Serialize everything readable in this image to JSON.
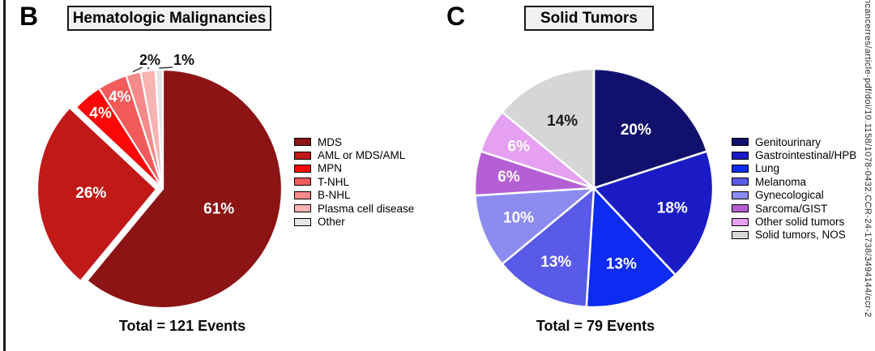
{
  "figure": {
    "watermark_text": "ncancerres/article-pdf/doi/10.1158/1078-0432.CCR-24-1738/3494144/ccr-2"
  },
  "chart_data": [
    {
      "type": "pie",
      "panel_letter": "B",
      "title": "Hematologic Malignancies",
      "total_events": 121,
      "total_label": "Total = 121 Events",
      "start_angle_deg": 0,
      "direction": "clockwise",
      "legend_position": "right",
      "slices": [
        {
          "name": "MDS",
          "pct": 61,
          "label": "61%",
          "color": "#8D1414",
          "label_color": "#ffffff",
          "label_r": 0.5,
          "label_pos": "inside"
        },
        {
          "name": "AML or MDS/AML",
          "pct": 26,
          "label": "26%",
          "color": "#C11818",
          "label_color": "#ffffff",
          "label_r": 0.55,
          "label_pos": "inside",
          "explode": 8
        },
        {
          "name": "MPN",
          "pct": 4,
          "label": "4%",
          "color": "#F90808",
          "label_color": "#ffffff",
          "label_r": 0.82,
          "label_pos": "inside"
        },
        {
          "name": "T-NHL",
          "pct": 4,
          "label": "4%",
          "color": "#F15B5B",
          "label_color": "#ffffff",
          "label_r": 0.85,
          "label_pos": "inside"
        },
        {
          "name": "B-NHL",
          "pct": 2,
          "color": "#F68A8A",
          "label_pos": "outside"
        },
        {
          "name": "Plasma cell disease",
          "pct": 2,
          "color": "#F9B3B3",
          "label_pos": "outside"
        },
        {
          "name": "Other",
          "pct": 1,
          "color": "#E5E5E5",
          "label_pos": "outside"
        }
      ],
      "outside_labels": [
        {
          "text": "2%",
          "slice_names": [
            "B-NHL",
            "Plasma cell disease"
          ]
        },
        {
          "text": "1%",
          "slice_names": [
            "Other"
          ]
        }
      ]
    },
    {
      "type": "pie",
      "panel_letter": "C",
      "title": "Solid Tumors",
      "total_events": 79,
      "total_label": "Total = 79 Events",
      "start_angle_deg": 0,
      "direction": "clockwise",
      "legend_position": "right",
      "slices": [
        {
          "name": "Genitourinary",
          "pct": 20,
          "label": "20%",
          "color": "#11116D",
          "label_color": "#ffffff",
          "label_r": 0.6,
          "label_pos": "inside"
        },
        {
          "name": "Gastrointestinal/HPB",
          "pct": 18,
          "label": "18%",
          "color": "#1B1BC6",
          "label_color": "#ffffff",
          "label_r": 0.68,
          "label_pos": "inside"
        },
        {
          "name": "Lung",
          "pct": 13,
          "label": "13%",
          "color": "#0E2BF2",
          "label_color": "#ffffff",
          "label_r": 0.68,
          "label_pos": "inside"
        },
        {
          "name": "Melanoma",
          "pct": 13,
          "label": "13%",
          "color": "#5A5AE8",
          "label_color": "#ffffff",
          "label_r": 0.7,
          "label_pos": "inside"
        },
        {
          "name": "Gynecological",
          "pct": 10,
          "label": "10%",
          "color": "#8B8BF0",
          "label_color": "#ffffff",
          "label_r": 0.68,
          "label_pos": "inside"
        },
        {
          "name": "Sarcoma/GIST",
          "pct": 6,
          "label": "6%",
          "color": "#B55FD4",
          "label_color": "#ffffff",
          "label_r": 0.72,
          "label_pos": "inside"
        },
        {
          "name": "Other solid tumors",
          "pct": 6,
          "label": "6%",
          "color": "#E5A0F2",
          "label_color": "#ffffff",
          "label_r": 0.72,
          "label_pos": "inside"
        },
        {
          "name": "Solid tumors, NOS",
          "pct": 14,
          "label": "14%",
          "color": "#D6D6D6",
          "label_color": "#1a1a1a",
          "label_r": 0.62,
          "label_pos": "inside"
        }
      ]
    }
  ]
}
